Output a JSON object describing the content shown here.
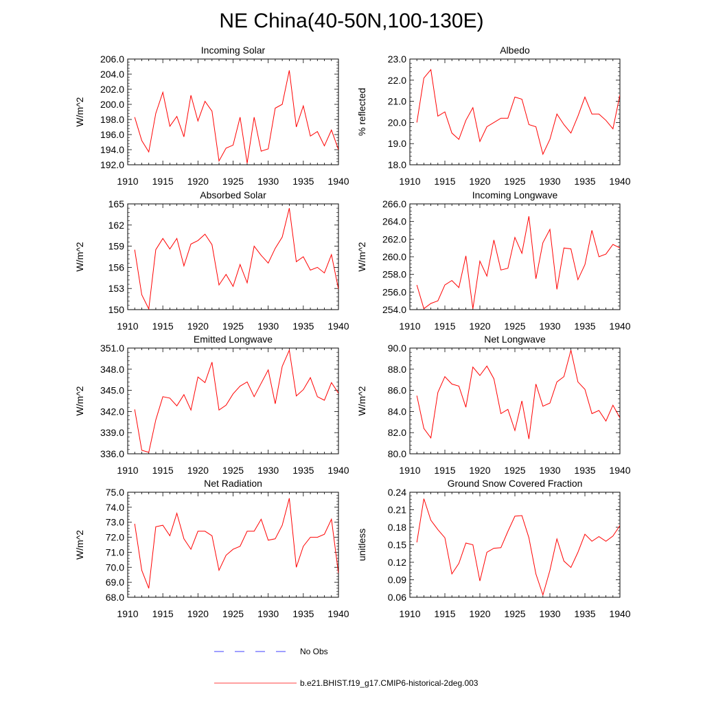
{
  "figure_title": "NE China(40-50N,100-130E)",
  "legend": {
    "items": [
      {
        "label": "No Obs",
        "color": "#0000ff",
        "dash": true
      },
      {
        "label": "b.e21.BHIST.f19_g17.CMIP6-historical-2deg.003",
        "color": "#ff0000",
        "dash": false
      }
    ]
  },
  "colors": {
    "series": "#ff0000",
    "axis": "#000000",
    "no_obs": "#0000ff"
  },
  "chart_data": [
    {
      "type": "line",
      "title": "Incoming Solar",
      "xlabel": "",
      "ylabel": "W/m^2",
      "xlim": [
        1910,
        1940
      ],
      "ylim": [
        192,
        206
      ],
      "xticks": [
        1910,
        1915,
        1920,
        1925,
        1930,
        1935,
        1940
      ],
      "yticks": [
        192,
        194,
        196,
        198,
        200,
        202,
        204,
        206
      ],
      "ytick_labels": [
        "192.0",
        "194.0",
        "196.0",
        "198.0",
        "200.0",
        "202.0",
        "204.0",
        "206.0"
      ],
      "grid": false,
      "series": [
        {
          "x": [
            1911,
            1912,
            1913,
            1914,
            1915,
            1916,
            1917,
            1918,
            1919,
            1920,
            1921,
            1922,
            1923,
            1924,
            1925,
            1926,
            1927,
            1928,
            1929,
            1930,
            1931,
            1932,
            1933,
            1934,
            1935,
            1936,
            1937,
            1938,
            1939,
            1940
          ],
          "values": [
            198.3,
            195.2,
            193.7,
            198.8,
            201.6,
            197.1,
            198.4,
            195.7,
            201.2,
            197.8,
            200.4,
            199.1,
            192.5,
            194.2,
            194.6,
            198.3,
            192.2,
            198.3,
            193.8,
            194.1,
            199.5,
            200.0,
            204.5,
            197.0,
            199.8,
            195.8,
            196.4,
            194.5,
            196.6,
            194.0
          ]
        }
      ]
    },
    {
      "type": "line",
      "title": "Albedo",
      "xlabel": "",
      "ylabel": "% reflected",
      "xlim": [
        1910,
        1940
      ],
      "ylim": [
        18,
        23
      ],
      "xticks": [
        1910,
        1915,
        1920,
        1925,
        1930,
        1935,
        1940
      ],
      "yticks": [
        18,
        19,
        20,
        21,
        22,
        23
      ],
      "ytick_labels": [
        "18.0",
        "19.0",
        "20.0",
        "21.0",
        "22.0",
        "23.0"
      ],
      "grid": false,
      "series": [
        {
          "x": [
            1911,
            1912,
            1913,
            1914,
            1915,
            1916,
            1917,
            1918,
            1919,
            1920,
            1921,
            1922,
            1923,
            1924,
            1925,
            1926,
            1927,
            1928,
            1929,
            1930,
            1931,
            1932,
            1933,
            1934,
            1935,
            1936,
            1937,
            1938,
            1939,
            1940
          ],
          "values": [
            20.0,
            22.1,
            22.5,
            20.3,
            20.5,
            19.5,
            19.2,
            20.1,
            20.7,
            19.1,
            19.8,
            20.0,
            20.2,
            20.2,
            21.2,
            21.1,
            19.9,
            19.8,
            18.5,
            19.2,
            20.4,
            19.9,
            19.5,
            20.3,
            21.2,
            20.4,
            20.4,
            20.1,
            19.7,
            21.3
          ]
        }
      ]
    },
    {
      "type": "line",
      "title": "Absorbed Solar",
      "xlabel": "",
      "ylabel": "W/m^2",
      "xlim": [
        1910,
        1940
      ],
      "ylim": [
        150,
        165
      ],
      "xticks": [
        1910,
        1915,
        1920,
        1925,
        1930,
        1935,
        1940
      ],
      "yticks": [
        150,
        153,
        156,
        159,
        162,
        165
      ],
      "ytick_labels": [
        "150",
        "153",
        "156",
        "159",
        "162",
        "165"
      ],
      "grid": false,
      "series": [
        {
          "x": [
            1911,
            1912,
            1913,
            1914,
            1915,
            1916,
            1917,
            1918,
            1919,
            1920,
            1921,
            1922,
            1923,
            1924,
            1925,
            1926,
            1927,
            1928,
            1929,
            1930,
            1931,
            1932,
            1933,
            1934,
            1935,
            1936,
            1937,
            1938,
            1939,
            1940
          ],
          "values": [
            158.5,
            152.1,
            150.1,
            158.5,
            160.1,
            158.6,
            160.1,
            156.2,
            159.3,
            159.8,
            160.7,
            159.2,
            153.5,
            155.0,
            153.3,
            156.4,
            153.8,
            159.0,
            157.7,
            156.6,
            158.7,
            160.3,
            164.4,
            156.8,
            157.5,
            155.6,
            156.0,
            155.2,
            157.8,
            152.9
          ]
        }
      ]
    },
    {
      "type": "line",
      "title": "Incoming Longwave",
      "xlabel": "",
      "ylabel": "W/m^2",
      "xlim": [
        1910,
        1940
      ],
      "ylim": [
        254,
        266
      ],
      "xticks": [
        1910,
        1915,
        1920,
        1925,
        1930,
        1935,
        1940
      ],
      "yticks": [
        254,
        256,
        258,
        260,
        262,
        264,
        266
      ],
      "ytick_labels": [
        "254.0",
        "256.0",
        "258.0",
        "260.0",
        "262.0",
        "264.0",
        "266.0"
      ],
      "grid": false,
      "series": [
        {
          "x": [
            1911,
            1912,
            1913,
            1914,
            1915,
            1916,
            1917,
            1918,
            1919,
            1920,
            1921,
            1922,
            1923,
            1924,
            1925,
            1926,
            1927,
            1928,
            1929,
            1930,
            1931,
            1932,
            1933,
            1934,
            1935,
            1936,
            1937,
            1938,
            1939,
            1940
          ],
          "values": [
            256.8,
            254.1,
            254.7,
            255.0,
            256.8,
            257.3,
            256.5,
            260.1,
            254.1,
            259.5,
            257.8,
            261.9,
            258.5,
            258.7,
            262.2,
            260.4,
            264.6,
            257.5,
            261.6,
            263.1,
            256.3,
            261.0,
            260.9,
            257.4,
            259.1,
            263.0,
            260.0,
            260.3,
            261.4,
            261.0
          ]
        }
      ]
    },
    {
      "type": "line",
      "title": "Emitted Longwave",
      "xlabel": "",
      "ylabel": "W/m^2",
      "xlim": [
        1910,
        1940
      ],
      "ylim": [
        336,
        351
      ],
      "xticks": [
        1910,
        1915,
        1920,
        1925,
        1930,
        1935,
        1940
      ],
      "yticks": [
        336,
        339,
        342,
        345,
        348,
        351
      ],
      "ytick_labels": [
        "336.0",
        "339.0",
        "342.0",
        "345.0",
        "348.0",
        "351.0"
      ],
      "grid": false,
      "series": [
        {
          "x": [
            1911,
            1912,
            1913,
            1914,
            1915,
            1916,
            1917,
            1918,
            1919,
            1920,
            1921,
            1922,
            1923,
            1924,
            1925,
            1926,
            1927,
            1928,
            1929,
            1930,
            1931,
            1932,
            1933,
            1934,
            1935,
            1936,
            1937,
            1938,
            1939,
            1940
          ],
          "values": [
            342.3,
            336.5,
            336.2,
            340.8,
            344.1,
            343.9,
            342.8,
            344.4,
            342.2,
            346.9,
            346.1,
            349.0,
            342.2,
            342.9,
            344.5,
            345.6,
            346.2,
            344.1,
            346.0,
            347.9,
            343.1,
            348.4,
            350.7,
            344.2,
            345.1,
            346.8,
            344.1,
            343.6,
            346.1,
            344.6
          ]
        }
      ]
    },
    {
      "type": "line",
      "title": "Net Longwave",
      "xlabel": "",
      "ylabel": "W/m^2",
      "xlim": [
        1910,
        1940
      ],
      "ylim": [
        80,
        90
      ],
      "xticks": [
        1910,
        1915,
        1920,
        1925,
        1930,
        1935,
        1940
      ],
      "yticks": [
        80,
        82,
        84,
        86,
        88,
        90
      ],
      "ytick_labels": [
        "80.0",
        "82.0",
        "84.0",
        "86.0",
        "88.0",
        "90.0"
      ],
      "grid": false,
      "series": [
        {
          "x": [
            1911,
            1912,
            1913,
            1914,
            1915,
            1916,
            1917,
            1918,
            1919,
            1920,
            1921,
            1922,
            1923,
            1924,
            1925,
            1926,
            1927,
            1928,
            1929,
            1930,
            1931,
            1932,
            1933,
            1934,
            1935,
            1936,
            1937,
            1938,
            1939,
            1940
          ],
          "values": [
            85.5,
            82.4,
            81.5,
            85.8,
            87.3,
            86.6,
            86.4,
            84.4,
            88.2,
            87.4,
            88.3,
            87.1,
            83.8,
            84.2,
            82.2,
            85.0,
            81.4,
            86.6,
            84.5,
            84.8,
            86.8,
            87.3,
            89.8,
            86.8,
            86.1,
            83.8,
            84.1,
            83.1,
            84.6,
            83.4
          ]
        }
      ]
    },
    {
      "type": "line",
      "title": "Net Radiation",
      "xlabel": "",
      "ylabel": "W/m^2",
      "xlim": [
        1910,
        1940
      ],
      "ylim": [
        68,
        75
      ],
      "xticks": [
        1910,
        1915,
        1920,
        1925,
        1930,
        1935,
        1940
      ],
      "yticks": [
        68,
        69,
        70,
        71,
        72,
        73,
        74,
        75
      ],
      "ytick_labels": [
        "68.0",
        "69.0",
        "70.0",
        "71.0",
        "72.0",
        "73.0",
        "74.0",
        "75.0"
      ],
      "grid": false,
      "series": [
        {
          "x": [
            1911,
            1912,
            1913,
            1914,
            1915,
            1916,
            1917,
            1918,
            1919,
            1920,
            1921,
            1922,
            1923,
            1924,
            1925,
            1926,
            1927,
            1928,
            1929,
            1930,
            1931,
            1932,
            1933,
            1934,
            1935,
            1936,
            1937,
            1938,
            1939,
            1940
          ],
          "values": [
            72.9,
            69.8,
            68.6,
            72.7,
            72.8,
            72.1,
            73.6,
            71.9,
            71.2,
            72.4,
            72.4,
            72.1,
            69.8,
            70.8,
            71.2,
            71.4,
            72.4,
            72.4,
            73.2,
            71.8,
            71.9,
            72.8,
            74.6,
            70.0,
            71.4,
            72.0,
            72.0,
            72.2,
            73.2,
            69.6
          ]
        }
      ]
    },
    {
      "type": "line",
      "title": "Ground Snow Covered Fraction",
      "xlabel": "",
      "ylabel": "unitless",
      "xlim": [
        1910,
        1940
      ],
      "ylim": [
        0.06,
        0.24
      ],
      "xticks": [
        1910,
        1915,
        1920,
        1925,
        1930,
        1935,
        1940
      ],
      "yticks": [
        0.06,
        0.09,
        0.12,
        0.15,
        0.18,
        0.21,
        0.24
      ],
      "ytick_labels": [
        "0.06",
        "0.09",
        "0.12",
        "0.15",
        "0.18",
        "0.21",
        "0.24"
      ],
      "grid": false,
      "series": [
        {
          "x": [
            1911,
            1912,
            1913,
            1914,
            1915,
            1916,
            1917,
            1918,
            1919,
            1920,
            1921,
            1922,
            1923,
            1924,
            1925,
            1926,
            1927,
            1928,
            1929,
            1930,
            1931,
            1932,
            1933,
            1934,
            1935,
            1936,
            1937,
            1938,
            1939,
            1940
          ],
          "values": [
            0.154,
            0.229,
            0.192,
            0.176,
            0.162,
            0.1,
            0.118,
            0.153,
            0.15,
            0.088,
            0.137,
            0.144,
            0.145,
            0.173,
            0.199,
            0.2,
            0.162,
            0.1,
            0.064,
            0.106,
            0.16,
            0.122,
            0.111,
            0.137,
            0.168,
            0.156,
            0.164,
            0.156,
            0.165,
            0.183
          ]
        }
      ]
    }
  ]
}
